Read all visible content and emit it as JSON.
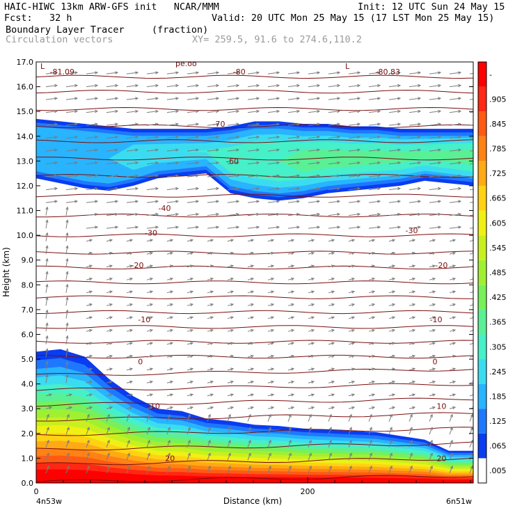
{
  "header": {
    "model": "HAIC-HIWC 13km ARW-GFS init   NCAR/MMM",
    "init": "Init: 12 UTC Sun 24 May 15",
    "fcst": "Fcst:   32 h",
    "valid": "Valid: 20 UTC Mon 25 May 15 (17 LST Mon 25 May 15)",
    "field1": "Boundary Layer Tracer",
    "field1_units": "(fraction)",
    "field2": "Circulation vectors",
    "xsec": "XY= 259.5, 91.6 to 274.6,110.2"
  },
  "chart_data": {
    "type": "heatmap",
    "xlabel": "Distance (km)",
    "ylabel": "Height (km)",
    "x_tick_labels": [
      "0",
      "200"
    ],
    "x_tick_values": [
      0,
      200
    ],
    "x_end_labels": {
      "left": "4n53w",
      "right": "6n51w"
    },
    "xlim": [
      0,
      322
    ],
    "ylim": [
      0,
      17
    ],
    "y_ticks": [
      "0.0",
      "1.0",
      "2.0",
      "3.0",
      "4.0",
      "5.0",
      "6.0",
      "7.0",
      "8.0",
      "9.0",
      "10.0",
      "11.0",
      "12.0",
      "13.0",
      "14.0",
      "15.0",
      "16.0",
      "17.0"
    ],
    "colorbar_labels": [
      ".005",
      ".065",
      ".125",
      ".185",
      ".245",
      ".305",
      ".365",
      ".425",
      ".485",
      ".545",
      ".605",
      ".665",
      ".725",
      ".785",
      ".845",
      ".905",
      "-"
    ],
    "colorbar_colors": [
      "#ffffff",
      "#0a3cf0",
      "#1e78ff",
      "#28b4ff",
      "#3cdcf0",
      "#46f0c8",
      "#5af096",
      "#78f05a",
      "#a0f032",
      "#c8f01e",
      "#f0f014",
      "#ffd214",
      "#ffaa14",
      "#ff8214",
      "#ff5a14",
      "#ff2814",
      "#ff0000"
    ],
    "isotherm_labels": [
      "-81.09",
      "-80",
      "-80.83",
      "-70",
      "-60",
      "-40",
      "-30",
      "-30",
      "-20",
      "-20",
      "-10",
      "-10",
      "0",
      "0",
      "-10",
      "10",
      "20",
      "20"
    ],
    "top_label": "pe.oo",
    "low_markers": [
      "L",
      "L"
    ],
    "lower_layer_top_km": [
      5.3,
      5.4,
      5.1,
      4.2,
      3.5,
      3.0,
      2.9,
      2.6,
      2.5,
      2.35,
      2.3,
      2.2,
      2.15,
      2.1,
      2.05,
      1.9,
      1.75,
      1.3,
      1.3
    ],
    "upper_layer_bottom_km": [
      12.3,
      12.1,
      11.9,
      11.8,
      12.0,
      12.3,
      12.4,
      12.5,
      11.7,
      11.5,
      11.4,
      11.5,
      11.7,
      11.8,
      11.9,
      12.0,
      12.2,
      12.1,
      12.0
    ],
    "upper_layer_top_km": [
      14.7,
      14.6,
      14.5,
      14.4,
      14.3,
      14.3,
      14.3,
      14.3,
      14.4,
      14.6,
      14.6,
      14.5,
      14.5,
      14.4,
      14.4,
      14.3,
      14.3,
      14.3,
      14.3
    ]
  }
}
